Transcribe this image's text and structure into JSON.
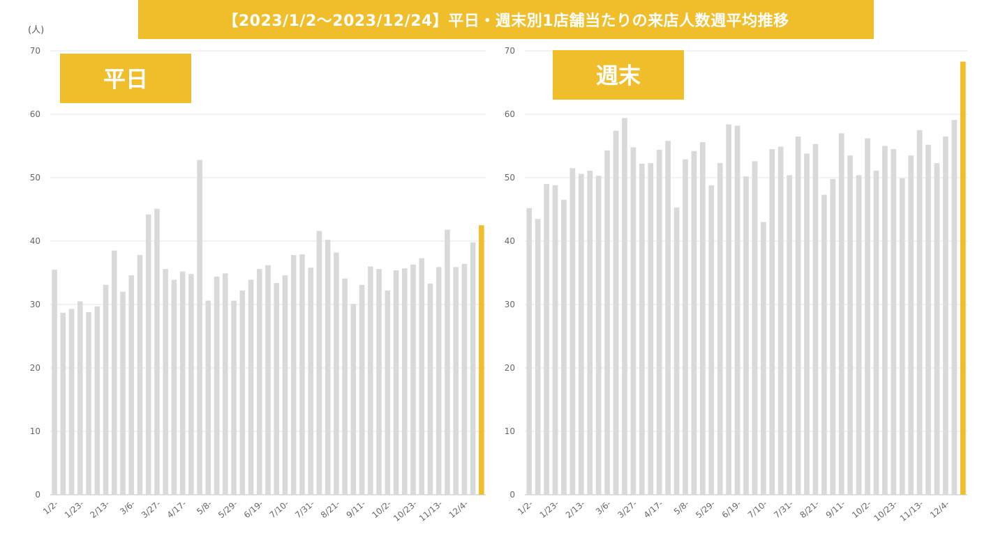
{
  "title": "【2023/1/2～2023/12/24】平日・週末別1店舗当たりの来店人数週平均推移",
  "unit": "(人)",
  "colors": {
    "accent": "#F0BE2A",
    "bar": "#D9D9D9",
    "grid": "#E6E6E6",
    "axis": "#BFBFBF"
  },
  "chart_data": [
    {
      "type": "bar",
      "title": "平日",
      "ylim": [
        0,
        70
      ],
      "yticks": [
        0,
        10,
        20,
        30,
        40,
        50,
        60,
        70
      ],
      "grid": true,
      "highlight_last": true,
      "x_tick_labels": [
        "1/2-",
        "1/23-",
        "2/13-",
        "3/6-",
        "3/27-",
        "4/17-",
        "5/8-",
        "5/29-",
        "6/19-",
        "7/10-",
        "7/31-",
        "8/21-",
        "9/11-",
        "10/2-",
        "10/23-",
        "11/13-",
        "12/4-"
      ],
      "values": [
        35.5,
        28.7,
        29.3,
        30.5,
        28.8,
        29.7,
        33.1,
        38.5,
        32.0,
        34.6,
        37.8,
        44.2,
        45.1,
        35.6,
        33.9,
        35.2,
        34.8,
        52.8,
        30.6,
        34.4,
        34.9,
        30.6,
        32.2,
        33.9,
        35.6,
        36.2,
        33.4,
        34.6,
        37.8,
        37.9,
        35.8,
        41.6,
        40.2,
        38.2,
        34.1,
        30.1,
        33.1,
        36.0,
        35.6,
        32.2,
        35.4,
        35.7,
        36.3,
        37.3,
        33.3,
        35.9,
        41.8,
        35.9,
        36.4,
        39.8,
        42.5
      ]
    },
    {
      "type": "bar",
      "title": "週末",
      "ylim": [
        0,
        70
      ],
      "yticks": [
        0,
        10,
        20,
        30,
        40,
        50,
        60,
        70
      ],
      "grid": true,
      "highlight_last": true,
      "x_tick_labels": [
        "1/2-",
        "1/23-",
        "2/13-",
        "3/6-",
        "3/27-",
        "4/17-",
        "5/8-",
        "5/29-",
        "6/19-",
        "7/10-",
        "7/31-",
        "8/21-",
        "9/11-",
        "10/2-",
        "10/23-",
        "11/13-",
        "12/4-"
      ],
      "values": [
        45.2,
        43.5,
        49.0,
        48.8,
        46.5,
        51.5,
        50.6,
        51.1,
        50.3,
        54.3,
        57.4,
        59.4,
        54.8,
        52.2,
        52.3,
        54.4,
        55.8,
        45.3,
        52.9,
        54.2,
        55.6,
        48.8,
        52.3,
        58.4,
        58.2,
        50.2,
        52.6,
        43.0,
        54.5,
        54.9,
        50.4,
        56.5,
        53.8,
        55.3,
        47.3,
        49.8,
        57.0,
        53.5,
        50.4,
        56.2,
        51.1,
        55.0,
        54.5,
        49.9,
        53.5,
        57.5,
        55.2,
        52.3,
        56.5,
        59.1,
        68.3
      ]
    }
  ]
}
